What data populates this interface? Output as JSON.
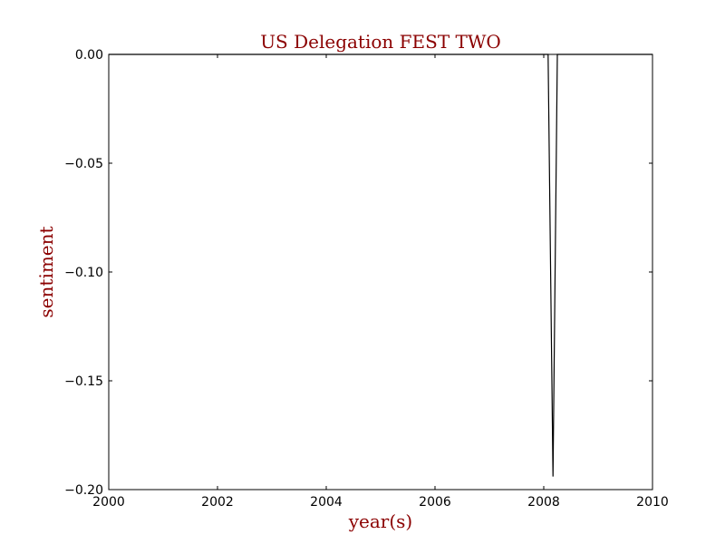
{
  "chart_data": {
    "type": "line",
    "title": "US Delegation FEST TWO",
    "xlabel": "year(s)",
    "ylabel": "sentiment",
    "xlim": [
      2000,
      2010
    ],
    "ylim": [
      -0.2,
      0.0
    ],
    "grid": false,
    "x_ticks": [
      2000,
      2002,
      2004,
      2006,
      2008,
      2010
    ],
    "x_tick_labels": [
      "2000",
      "2002",
      "2004",
      "2006",
      "2008",
      "2010"
    ],
    "y_ticks": [
      0.0,
      -0.05,
      -0.1,
      -0.15,
      -0.2
    ],
    "y_tick_labels": [
      "0.00",
      "−0.05",
      "−0.10",
      "−0.15",
      "−0.20"
    ],
    "series": [
      {
        "x": [
          2000.0,
          2008.08,
          2008.17,
          2008.25,
          2010.0
        ],
        "y": [
          0.0,
          0.0,
          -0.194,
          0.0,
          0.0
        ]
      }
    ],
    "colors": {
      "text_accent": "#8b0000",
      "line": "#000000",
      "axes": "#000000"
    }
  }
}
